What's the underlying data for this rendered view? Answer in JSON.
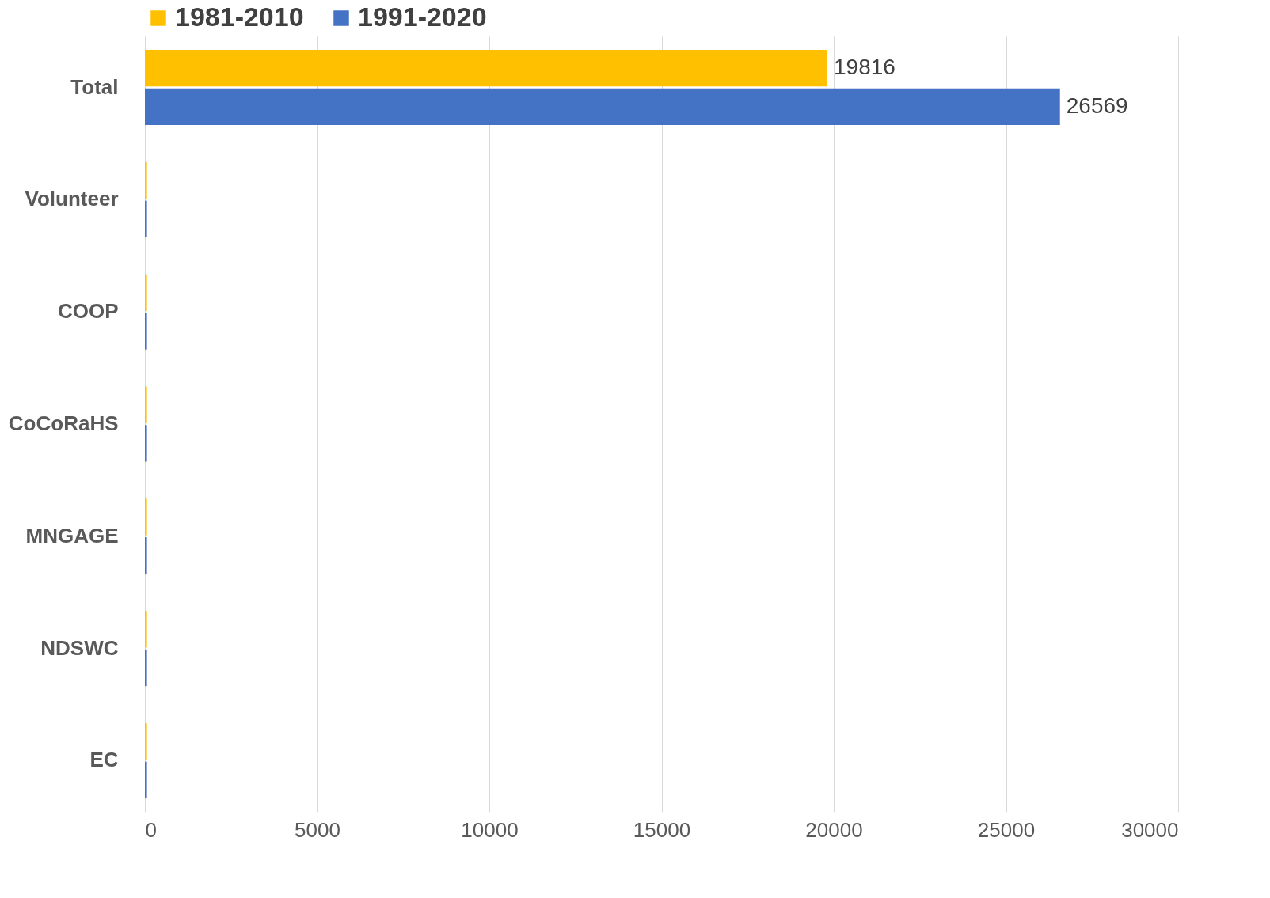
{
  "chart_data": {
    "type": "bar",
    "orientation": "horizontal",
    "categories": [
      "Total",
      "Volunteer",
      "COOP",
      "CoCoRaHS",
      "MNGAGE",
      "NDSWC",
      "EC"
    ],
    "series": [
      {
        "name": "1981-2010",
        "color": "#ffc000",
        "values": [
          19816,
          60,
          60,
          60,
          60,
          60,
          60
        ],
        "value_labels": [
          "19816",
          null,
          null,
          null,
          null,
          null,
          null
        ]
      },
      {
        "name": "1991-2020",
        "color": "#4472c4",
        "values": [
          26569,
          60,
          60,
          60,
          60,
          60,
          60
        ],
        "value_labels": [
          "26569",
          null,
          null,
          null,
          null,
          null,
          null
        ]
      }
    ],
    "xlim": [
      0,
      30000
    ],
    "xticks": [
      0,
      5000,
      10000,
      15000,
      20000,
      25000,
      30000
    ],
    "grid": "x",
    "legend": "top"
  }
}
